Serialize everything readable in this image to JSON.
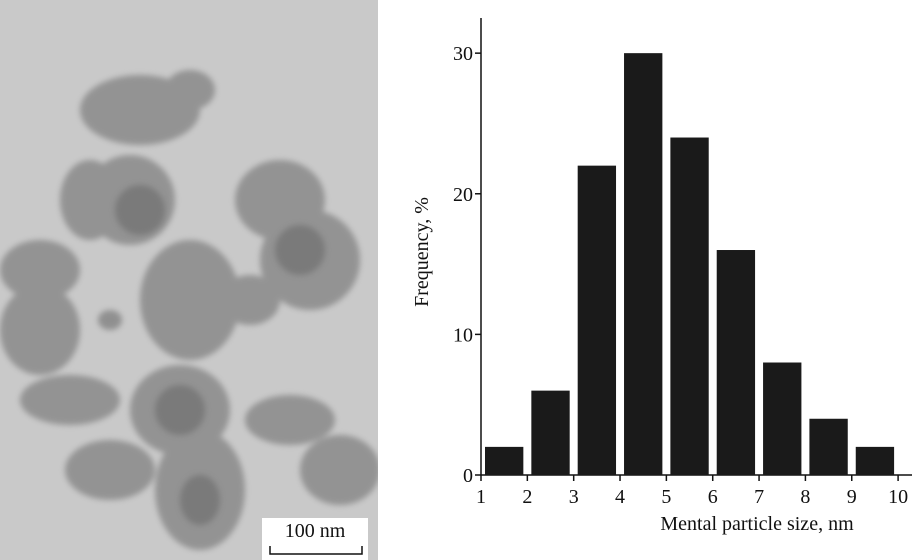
{
  "image": {
    "scale_bar": "100 nm"
  },
  "chart_data": {
    "type": "histogram",
    "xlabel": "Mental particle size, nm",
    "ylabel": "Frequency, %",
    "bins": [
      1,
      2,
      3,
      4,
      5,
      6,
      7,
      8,
      9,
      10
    ],
    "counts": [
      2,
      6,
      22,
      30,
      24,
      16,
      8,
      4,
      2
    ],
    "color": "#1a1a1a",
    "xlim": [
      1,
      10.3
    ],
    "ylim": [
      0,
      32.5
    ],
    "xticks": [
      1,
      2,
      3,
      4,
      5,
      6,
      7,
      8,
      9,
      10
    ],
    "yticks": [
      0,
      10,
      20,
      30
    ]
  }
}
